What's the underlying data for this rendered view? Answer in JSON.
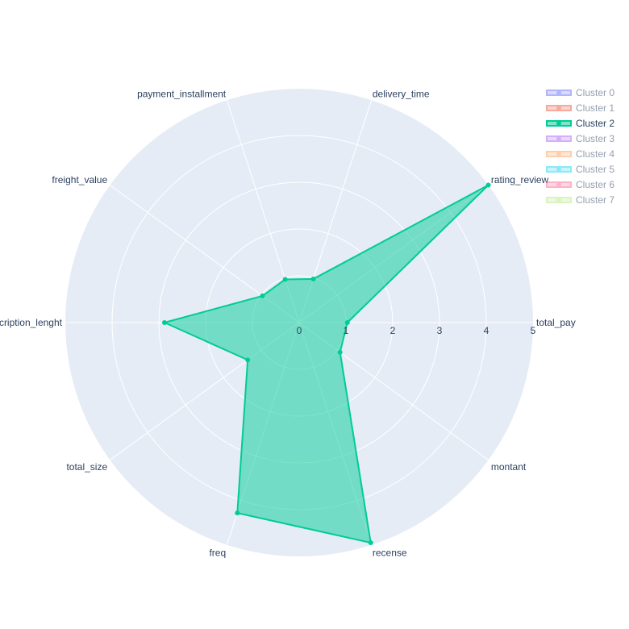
{
  "chart_data": {
    "type": "radar",
    "radial_range": [
      0,
      5
    ],
    "radial_ticks": [
      0,
      1,
      2,
      3,
      4,
      5
    ],
    "theta": [
      "total_pay",
      "rating_review",
      "delivery_time",
      "payment_installment",
      "freight_value",
      "description_lenght",
      "total_size",
      "freq",
      "recense",
      "montant"
    ],
    "theta_labels_shown": [
      "total_pay",
      "rating_review",
      "delivery_time",
      "payment_installment",
      "freight_value",
      "cription_lenght",
      "total_size",
      "freq",
      "recense",
      "montant"
    ],
    "series": [
      {
        "name": "Cluster 0",
        "color": "#636efa",
        "visible": false,
        "values": []
      },
      {
        "name": "Cluster 1",
        "color": "#ef553b",
        "visible": false,
        "values": []
      },
      {
        "name": "Cluster 2",
        "color": "#00cc96",
        "visible": true,
        "values": [
          1.03,
          5.0,
          0.98,
          0.97,
          0.97,
          2.88,
          1.36,
          4.28,
          4.95,
          1.08
        ]
      },
      {
        "name": "Cluster 3",
        "color": "#ab63fa",
        "visible": false,
        "values": []
      },
      {
        "name": "Cluster 4",
        "color": "#ffa15a",
        "visible": false,
        "values": []
      },
      {
        "name": "Cluster 5",
        "color": "#19d3f3",
        "visible": false,
        "values": []
      },
      {
        "name": "Cluster 6",
        "color": "#ff6692",
        "visible": false,
        "values": []
      },
      {
        "name": "Cluster 7",
        "color": "#b6e880",
        "visible": false,
        "values": []
      }
    ],
    "legend_position": "top-right",
    "grid": true,
    "background": "#e5ecf6"
  }
}
